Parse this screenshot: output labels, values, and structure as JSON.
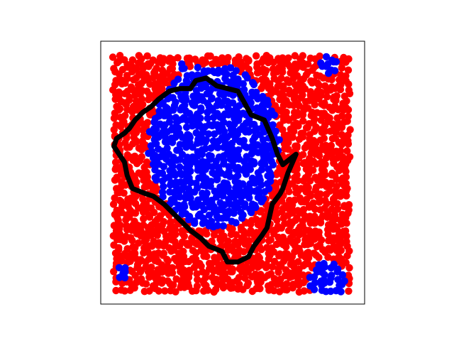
{
  "chart_data": {
    "type": "scatter",
    "title": "",
    "xlabel": "",
    "ylabel": "",
    "xlim": [
      0,
      1
    ],
    "ylim": [
      0,
      1
    ],
    "axis_ticks": "none",
    "grid": false,
    "legend": "none",
    "colors": {
      "red": "#ff0000",
      "blue": "#0000ff",
      "boundary": "#000000",
      "frame": "#000000"
    },
    "series": [
      {
        "color": "#ff0000",
        "fill_region": {
          "x": [
            0.055,
            0.945
          ],
          "y": [
            0.055,
            0.945
          ]
        }
      },
      {
        "color": "#0000ff",
        "main_cluster": {
          "center": [
            0.43,
            0.6
          ],
          "radius_x": 0.25,
          "radius_y": 0.31
        },
        "small_clusters": [
          {
            "center": [
              0.86,
              0.09
            ],
            "radius": 0.07
          },
          {
            "center": [
              0.86,
              0.91
            ],
            "radius": 0.035
          },
          {
            "center": [
              0.08,
              0.12
            ],
            "radius": 0.03
          },
          {
            "center": [
              0.31,
              0.91
            ],
            "radius": 0.02
          }
        ]
      }
    ],
    "boundary_line": {
      "color": "#000000",
      "points": [
        [
          0.36,
          0.85
        ],
        [
          0.4,
          0.86
        ],
        [
          0.44,
          0.83
        ],
        [
          0.52,
          0.81
        ],
        [
          0.57,
          0.72
        ],
        [
          0.62,
          0.7
        ],
        [
          0.65,
          0.63
        ],
        [
          0.67,
          0.57
        ],
        [
          0.69,
          0.53
        ],
        [
          0.74,
          0.57
        ],
        [
          0.71,
          0.5
        ],
        [
          0.69,
          0.44
        ],
        [
          0.68,
          0.42
        ],
        [
          0.65,
          0.38
        ],
        [
          0.63,
          0.29
        ],
        [
          0.61,
          0.26
        ],
        [
          0.58,
          0.22
        ],
        [
          0.56,
          0.18
        ],
        [
          0.52,
          0.16
        ],
        [
          0.48,
          0.16
        ],
        [
          0.46,
          0.2
        ],
        [
          0.41,
          0.22
        ],
        [
          0.38,
          0.25
        ],
        [
          0.34,
          0.28
        ],
        [
          0.3,
          0.32
        ],
        [
          0.27,
          0.35
        ],
        [
          0.24,
          0.38
        ],
        [
          0.2,
          0.41
        ],
        [
          0.17,
          0.42
        ],
        [
          0.12,
          0.44
        ],
        [
          0.1,
          0.49
        ],
        [
          0.09,
          0.54
        ],
        [
          0.07,
          0.57
        ],
        [
          0.05,
          0.6
        ],
        [
          0.06,
          0.63
        ],
        [
          0.09,
          0.65
        ],
        [
          0.11,
          0.67
        ],
        [
          0.13,
          0.7
        ],
        [
          0.16,
          0.73
        ],
        [
          0.19,
          0.75
        ],
        [
          0.22,
          0.78
        ],
        [
          0.26,
          0.81
        ],
        [
          0.3,
          0.82
        ],
        [
          0.34,
          0.82
        ],
        [
          0.36,
          0.85
        ]
      ]
    }
  }
}
